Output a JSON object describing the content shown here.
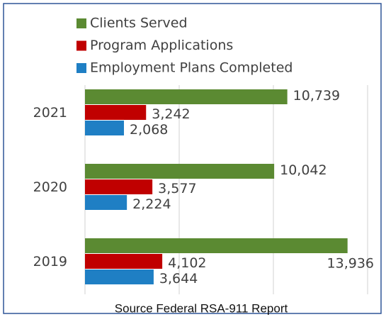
{
  "chart_data": {
    "type": "hbar",
    "caption": "Source Federal RSA-911 Report",
    "categories": [
      "2021",
      "2020",
      "2019"
    ],
    "series": [
      {
        "name": "Clients Served",
        "color": "#5b8a32",
        "values": [
          10739,
          10042,
          13936
        ],
        "value_labels": [
          "10,739",
          "10,042",
          "13,936"
        ]
      },
      {
        "name": "Program Applications",
        "color": "#c00000",
        "values": [
          3242,
          3577,
          4102
        ],
        "value_labels": [
          "3,242",
          "3,577",
          "4,102"
        ]
      },
      {
        "name": "Employment Plans Completed",
        "color": "#1f7fc4",
        "values": [
          2068,
          2224,
          3644
        ],
        "value_labels": [
          "2,068",
          "2,224",
          "3,644"
        ]
      }
    ],
    "xlim": [
      0,
      15000
    ],
    "xticks": [
      0,
      5000,
      10000,
      15000
    ],
    "grid": true
  }
}
